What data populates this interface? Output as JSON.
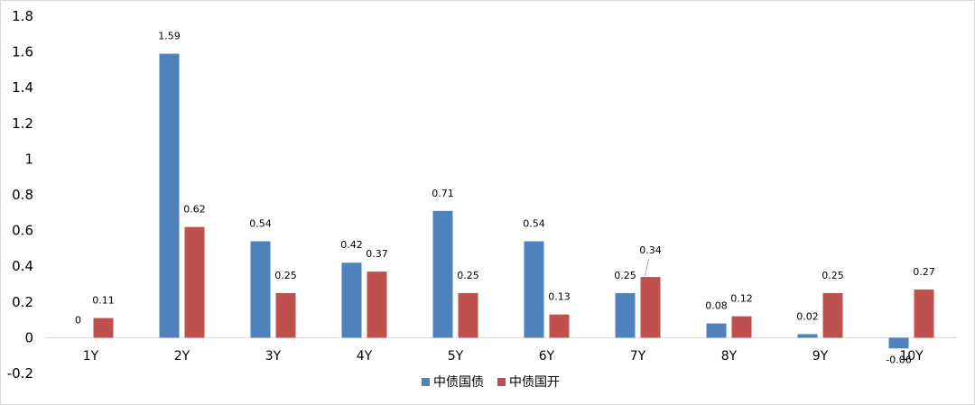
{
  "chart_data": {
    "type": "bar",
    "categories": [
      "1Y",
      "2Y",
      "3Y",
      "4Y",
      "5Y",
      "6Y",
      "7Y",
      "8Y",
      "9Y",
      "10Y"
    ],
    "series": [
      {
        "name": "中债国债",
        "color": "#4f81bd",
        "values": [
          0,
          1.59,
          0.54,
          0.42,
          0.71,
          0.54,
          0.25,
          0.08,
          0.02,
          -0.06
        ],
        "labels": [
          "0",
          "1.59",
          "0.54",
          "0.42",
          "0.71",
          "0.54",
          "0.25",
          "0.08",
          "0.02",
          "-0.06"
        ]
      },
      {
        "name": "中债国开",
        "color": "#c0504d",
        "values": [
          0.11,
          0.62,
          0.25,
          0.37,
          0.25,
          0.13,
          0.34,
          0.12,
          0.25,
          0.27
        ],
        "labels": [
          "0.11",
          "0.62",
          "0.25",
          "0.37",
          "0.25",
          "0.13",
          "0.34",
          "0.12",
          "0.25",
          "0.27"
        ]
      }
    ],
    "yticks": [
      "1.8",
      "1.6",
      "1.4",
      "1.2",
      "1",
      "0.8",
      "0.6",
      "0.4",
      "0.2",
      "0",
      "-0.2"
    ],
    "ytick_values": [
      1.8,
      1.6,
      1.4,
      1.2,
      1.0,
      0.8,
      0.6,
      0.4,
      0.2,
      0,
      -0.2
    ],
    "ylim": [
      -0.2,
      1.8
    ],
    "grid": false,
    "legend": "bottom-center",
    "title": "",
    "xlabel": "",
    "ylabel": ""
  }
}
